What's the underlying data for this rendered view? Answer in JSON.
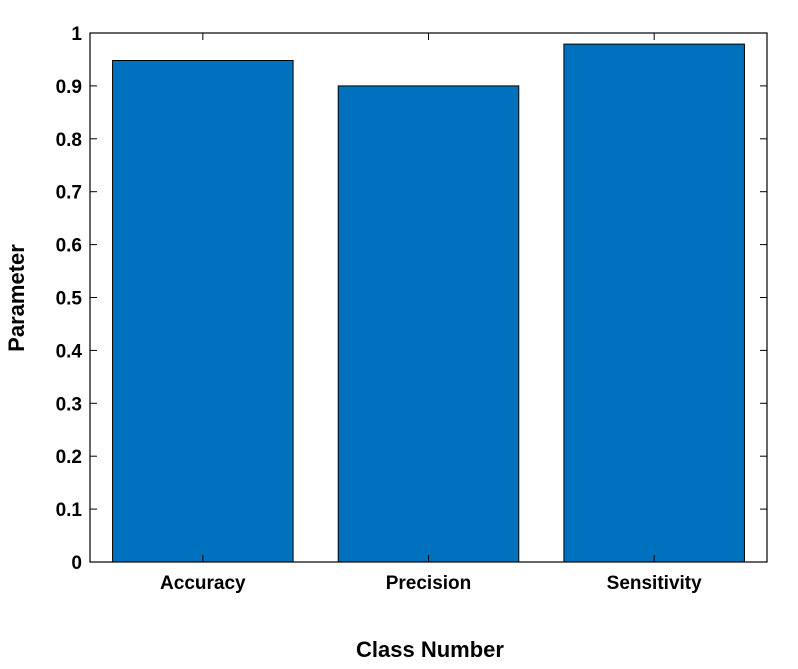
{
  "chart_data": {
    "type": "bar",
    "categories": [
      "Accuracy",
      "Precision",
      "Sensitivity"
    ],
    "values": [
      0.948,
      0.9,
      0.979
    ],
    "xlabel": "Class Number",
    "ylabel": "Parameter",
    "ylim": [
      0,
      1
    ],
    "yticks": [
      0,
      0.1,
      0.2,
      0.3,
      0.4,
      0.5,
      0.6,
      0.7,
      0.8,
      0.9,
      1
    ],
    "ytick_labels": [
      "0",
      "0.1",
      "0.2",
      "0.3",
      "0.4",
      "0.5",
      "0.6",
      "0.7",
      "0.8",
      "0.9",
      "1"
    ],
    "grid": false,
    "bar_color": "#0072BD"
  }
}
